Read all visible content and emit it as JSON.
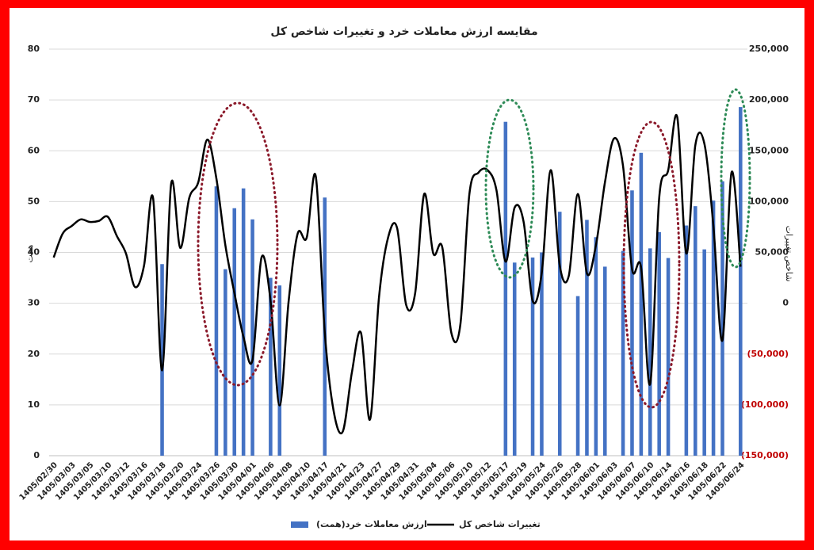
{
  "chart_data": {
    "type": "bar-line",
    "title": "مقایسه ارزش معاملات خرد و تغییرات شاخص کل",
    "y_label": "همت",
    "y2_label": "شاخص تغییرات",
    "categories": [
      "1405/02/30",
      null,
      "1405/03/03",
      null,
      "1405/03/05",
      null,
      "1405/03/10",
      null,
      "1405/03/12",
      null,
      "1405/03/16",
      null,
      "1405/03/18",
      null,
      "1405/03/20",
      null,
      "1405/03/24",
      null,
      "1405/03/26",
      null,
      "1405/03/30",
      null,
      "1405/04/01",
      null,
      "1405/04/06",
      null,
      "1405/04/08",
      null,
      "1405/04/10",
      null,
      "1405/04/17",
      null,
      "1405/04/21",
      null,
      "1405/04/23",
      null,
      "1405/04/27",
      null,
      "1405/04/29",
      null,
      "1405/04/31",
      null,
      "1405/05/04",
      null,
      "1405/05/06",
      null,
      "1405/05/10",
      null,
      "1405/05/12",
      null,
      "1405/05/17",
      null,
      "1405/05/19",
      null,
      "1405/05/24",
      null,
      "1405/05/26",
      null,
      "1405/05/28",
      null,
      "1405/06/01",
      null,
      "1405/06/03",
      null,
      "1405/06/07",
      null,
      "1405/06/10",
      null,
      "1405/06/14",
      null,
      "1405/06/16",
      null,
      "1405/06/18",
      null,
      "1405/06/22",
      null,
      "1405/06/24"
    ],
    "series": [
      {
        "name": "ارزش معاملات خرد(همت)",
        "type": "bar",
        "color": "#4472c4",
        "values": [
          null,
          null,
          null,
          null,
          null,
          null,
          null,
          null,
          null,
          null,
          null,
          null,
          37.7,
          null,
          null,
          null,
          null,
          null,
          53,
          36.7,
          48.7,
          52.6,
          46.5,
          null,
          35,
          33.5,
          null,
          null,
          null,
          null,
          50.8,
          null,
          null,
          null,
          null,
          null,
          null,
          null,
          null,
          null,
          null,
          null,
          null,
          null,
          null,
          null,
          null,
          null,
          null,
          null,
          65.7,
          38,
          null,
          39,
          40,
          null,
          48,
          null,
          31.4,
          46.4,
          43,
          37.2,
          null,
          40.3,
          52.2,
          59.6,
          40.8,
          44,
          38.9,
          null,
          45.3,
          49.1,
          40.6,
          50.2,
          54,
          null,
          68.6
        ]
      },
      {
        "name": "تغییرات شاخص کل",
        "type": "line",
        "color": "#000000",
        "axis": "y2",
        "values": [
          45000,
          68500,
          76000,
          82500,
          80000,
          81000,
          85000,
          66000,
          49000,
          16000,
          37000,
          103500,
          -66000,
          117500,
          54500,
          103500,
          119000,
          161000,
          123000,
          57000,
          10000,
          -33000,
          -56000,
          45000,
          2300,
          -100500,
          2000,
          68500,
          64500,
          125000,
          -29000,
          -107000,
          -126000,
          -68000,
          -29000,
          -114500,
          6000,
          64500,
          74000,
          -1500,
          10000,
          107500,
          49000,
          55000,
          -29000,
          -21000,
          107500,
          128500,
          131000,
          111000,
          41000,
          94000,
          80000,
          2300,
          29500,
          131000,
          37000,
          27000,
          107500,
          29500,
          57000,
          119000,
          162000,
          135000,
          33500,
          35000,
          -79500,
          103500,
          131000,
          183000,
          49000,
          155500,
          157000,
          76000,
          -36500,
          128500,
          36000
        ]
      }
    ],
    "ylim": [
      0,
      80
    ],
    "yticks": [
      0,
      10,
      20,
      30,
      40,
      50,
      60,
      70,
      80
    ],
    "y2lim": [
      -150000,
      250000
    ],
    "y2ticks": [
      {
        "value": -150000,
        "label": "(150,000)"
      },
      {
        "value": -100000,
        "label": "(100,000)"
      },
      {
        "value": -50000,
        "label": "(50,000)"
      },
      0,
      {
        "value": 50000,
        "label": "50,000"
      },
      {
        "value": 100000,
        "label": "100,000"
      },
      {
        "value": 150000,
        "label": "150,000"
      },
      {
        "value": 200000,
        "label": "200,000"
      },
      {
        "value": 250000,
        "label": "250,000"
      }
    ],
    "y2_negative_color": "#c00000",
    "grid": true,
    "legend": "bottom"
  }
}
